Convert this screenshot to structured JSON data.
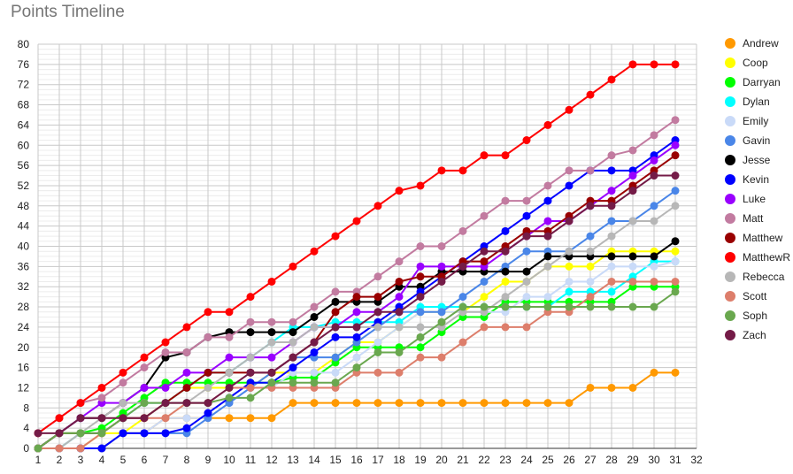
{
  "chart_data": {
    "type": "line",
    "title": "Points Timeline",
    "xlabel": "",
    "ylabel": "",
    "xlim": [
      1,
      32
    ],
    "ylim": [
      0,
      80
    ],
    "x_ticks": [
      1,
      2,
      3,
      4,
      5,
      6,
      7,
      8,
      9,
      10,
      11,
      12,
      13,
      14,
      15,
      16,
      17,
      18,
      19,
      20,
      21,
      22,
      23,
      24,
      25,
      26,
      27,
      28,
      29,
      30,
      31,
      32
    ],
    "y_ticks": [
      0,
      4,
      8,
      12,
      16,
      20,
      24,
      28,
      32,
      36,
      40,
      44,
      48,
      52,
      56,
      60,
      64,
      68,
      72,
      76,
      80
    ],
    "grid": true,
    "legend_position": "right",
    "x": [
      1,
      2,
      3,
      4,
      5,
      6,
      7,
      8,
      9,
      10,
      11,
      12,
      13,
      14,
      15,
      16,
      17,
      18,
      19,
      20,
      21,
      22,
      23,
      24,
      25,
      26,
      27,
      28,
      29,
      30,
      31
    ],
    "series": [
      {
        "name": "Andrew",
        "color": "#ff9900",
        "values": [
          0,
          0,
          0,
          0,
          3,
          3,
          6,
          6,
          6,
          6,
          6,
          6,
          9,
          9,
          9,
          9,
          9,
          9,
          9,
          9,
          9,
          9,
          9,
          9,
          9,
          9,
          12,
          12,
          12,
          15,
          15
        ]
      },
      {
        "name": "Coop",
        "color": "#ffff00",
        "values": [
          0,
          0,
          0,
          3,
          3,
          6,
          9,
          12,
          12,
          12,
          12,
          15,
          15,
          15,
          18,
          21,
          21,
          24,
          27,
          27,
          27,
          30,
          33,
          33,
          36,
          36,
          36,
          39,
          39,
          39,
          39
        ]
      },
      {
        "name": "Darryan",
        "color": "#00ff00",
        "values": [
          0,
          3,
          3,
          4,
          7,
          10,
          13,
          13,
          13,
          13,
          13,
          13,
          14,
          14,
          17,
          20,
          20,
          20,
          20,
          23,
          26,
          26,
          29,
          29,
          29,
          29,
          29,
          29,
          32,
          32,
          32
        ]
      },
      {
        "name": "Dylan",
        "color": "#00ffff",
        "values": [
          0,
          0,
          3,
          3,
          6,
          9,
          9,
          12,
          15,
          15,
          18,
          21,
          24,
          24,
          25,
          25,
          25,
          25,
          28,
          28,
          28,
          28,
          28,
          28,
          28,
          31,
          31,
          31,
          34,
          37,
          37
        ]
      },
      {
        "name": "Emily",
        "color": "#c9daf8",
        "values": [
          0,
          0,
          0,
          0,
          3,
          3,
          6,
          6,
          6,
          9,
          12,
          12,
          15,
          15,
          15,
          18,
          21,
          24,
          27,
          27,
          27,
          27,
          27,
          30,
          30,
          33,
          33,
          36,
          36,
          36,
          37
        ]
      },
      {
        "name": "Gavin",
        "color": "#4a86e8",
        "values": [
          0,
          0,
          0,
          0,
          3,
          3,
          3,
          3,
          6,
          9,
          12,
          15,
          18,
          18,
          18,
          21,
          24,
          27,
          27,
          27,
          30,
          33,
          36,
          39,
          39,
          39,
          42,
          45,
          45,
          48,
          51
        ]
      },
      {
        "name": "Jesse",
        "color": "#000000",
        "values": [
          0,
          3,
          6,
          6,
          9,
          12,
          18,
          19,
          22,
          23,
          23,
          23,
          23,
          26,
          29,
          29,
          29,
          32,
          32,
          35,
          35,
          35,
          35,
          35,
          38,
          38,
          38,
          38,
          38,
          38,
          41
        ]
      },
      {
        "name": "Kevin",
        "color": "#0000ff",
        "values": [
          0,
          0,
          0,
          0,
          3,
          3,
          3,
          4,
          7,
          10,
          13,
          13,
          16,
          19,
          22,
          22,
          25,
          28,
          31,
          34,
          37,
          40,
          43,
          46,
          49,
          52,
          55,
          55,
          55,
          58,
          61
        ]
      },
      {
        "name": "Luke",
        "color": "#9900ff",
        "values": [
          0,
          3,
          6,
          9,
          9,
          12,
          12,
          15,
          15,
          18,
          18,
          18,
          21,
          24,
          24,
          27,
          27,
          30,
          36,
          36,
          36,
          36,
          39,
          42,
          45,
          45,
          48,
          51,
          54,
          57,
          60
        ]
      },
      {
        "name": "Matt",
        "color": "#c27ba0",
        "values": [
          3,
          6,
          9,
          10,
          13,
          16,
          19,
          19,
          22,
          22,
          25,
          25,
          25,
          28,
          31,
          31,
          34,
          37,
          40,
          40,
          43,
          46,
          49,
          49,
          52,
          55,
          55,
          58,
          59,
          62,
          65
        ]
      },
      {
        "name": "Matthew",
        "color": "#990000",
        "values": [
          0,
          3,
          3,
          3,
          6,
          6,
          9,
          12,
          15,
          15,
          15,
          15,
          18,
          21,
          27,
          30,
          30,
          33,
          34,
          34,
          37,
          37,
          40,
          43,
          43,
          46,
          49,
          49,
          52,
          55,
          58
        ]
      },
      {
        "name": "MatthewR",
        "color": "#ff0000",
        "values": [
          3,
          6,
          9,
          12,
          15,
          18,
          21,
          24,
          27,
          27,
          30,
          33,
          36,
          39,
          42,
          45,
          48,
          51,
          52,
          55,
          55,
          58,
          58,
          61,
          64,
          67,
          70,
          73,
          76,
          76,
          76
        ]
      },
      {
        "name": "Rebecca",
        "color": "#b7b7b7",
        "values": [
          0,
          0,
          3,
          6,
          9,
          9,
          9,
          9,
          12,
          15,
          18,
          21,
          21,
          24,
          24,
          24,
          24,
          24,
          24,
          24,
          27,
          27,
          30,
          33,
          36,
          39,
          39,
          42,
          45,
          45,
          48
        ]
      },
      {
        "name": "Scott",
        "color": "#dd7e6b",
        "values": [
          0,
          0,
          0,
          3,
          6,
          6,
          6,
          9,
          9,
          12,
          12,
          12,
          12,
          12,
          12,
          15,
          15,
          15,
          18,
          18,
          21,
          24,
          24,
          24,
          27,
          27,
          30,
          33,
          33,
          33,
          33
        ]
      },
      {
        "name": "Soph",
        "color": "#6aa84f",
        "values": [
          0,
          3,
          3,
          3,
          6,
          9,
          9,
          9,
          9,
          10,
          10,
          13,
          13,
          13,
          13,
          16,
          19,
          19,
          22,
          25,
          28,
          28,
          28,
          28,
          28,
          28,
          28,
          28,
          28,
          28,
          31
        ]
      },
      {
        "name": "Zach",
        "color": "#741b47",
        "values": [
          3,
          3,
          6,
          6,
          6,
          6,
          9,
          9,
          9,
          12,
          15,
          15,
          18,
          21,
          24,
          24,
          27,
          27,
          30,
          33,
          36,
          39,
          39,
          42,
          42,
          45,
          48,
          48,
          51,
          54,
          54
        ]
      }
    ]
  }
}
